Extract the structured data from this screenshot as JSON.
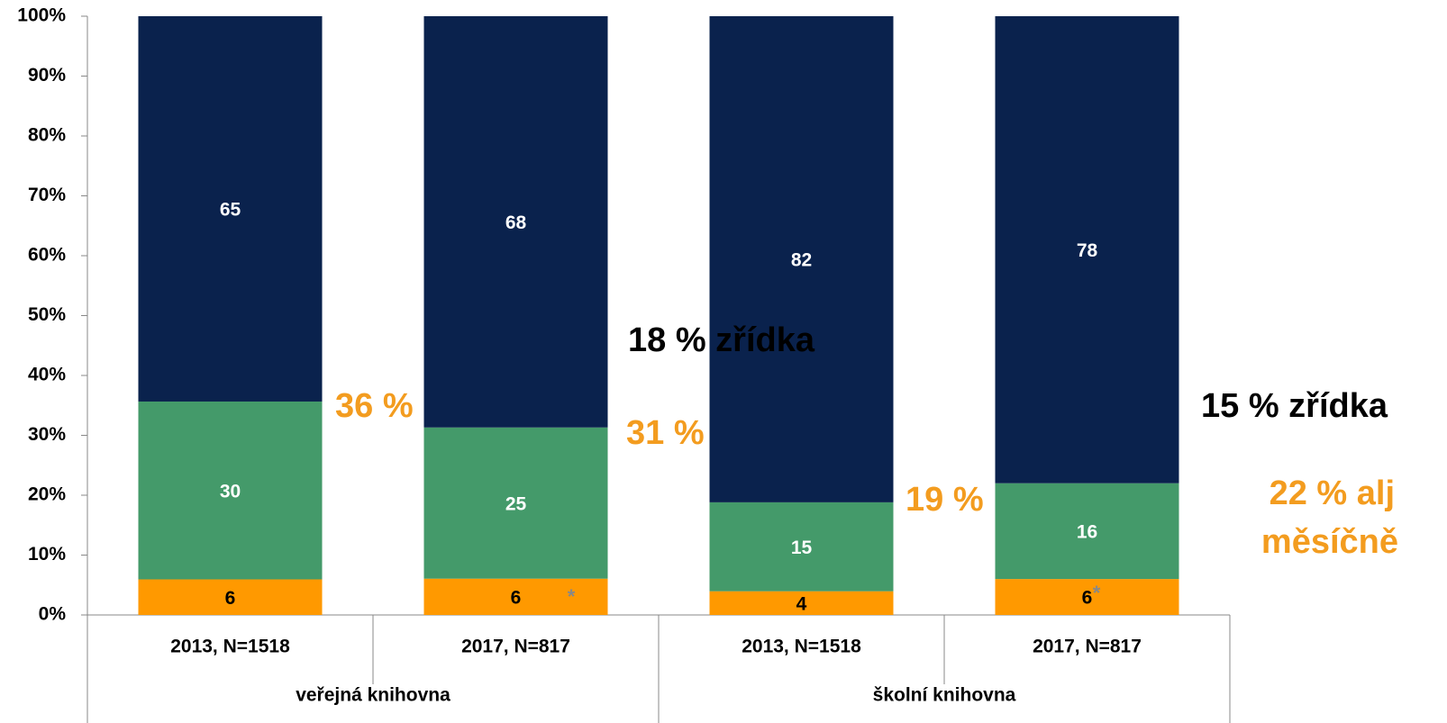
{
  "chart_data": {
    "type": "bar",
    "stacked": "percent",
    "categories": [
      "2013, N=1518",
      "2017, N=817",
      "2013, N=1518",
      "2017, N=817"
    ],
    "groups": [
      "veřejná knihovna",
      "školní knihovna"
    ],
    "series": [
      {
        "color": "#ff9900",
        "label_color": "#000000",
        "values": [
          6,
          6,
          4,
          6
        ]
      },
      {
        "color": "#449a6a",
        "label_color": "#ffffff",
        "values": [
          30,
          25,
          15,
          16
        ]
      },
      {
        "color": "#0a224d",
        "label_color": "#ffffff",
        "values": [
          65,
          68,
          82,
          78
        ]
      }
    ],
    "ylim": [
      0,
      100
    ],
    "yticks": [
      {
        "value": 0,
        "label": "0%"
      },
      {
        "value": 10,
        "label": "10%"
      },
      {
        "value": 20,
        "label": "20%"
      },
      {
        "value": 30,
        "label": "30%"
      },
      {
        "value": 40,
        "label": "40%"
      },
      {
        "value": 50,
        "label": "50%"
      },
      {
        "value": 60,
        "label": "60%"
      },
      {
        "value": 70,
        "label": "70%"
      },
      {
        "value": 80,
        "label": "80%"
      },
      {
        "value": 90,
        "label": "90%"
      },
      {
        "value": 100,
        "label": "100%"
      }
    ],
    "annotations": [
      {
        "text": "36 %",
        "color": "#f39c1f"
      },
      {
        "text": "31 %",
        "color": "#f39c1f"
      },
      {
        "text": "18 % zřídka",
        "color": "#000000"
      },
      {
        "text": "19 %",
        "color": "#f39c1f"
      },
      {
        "text": "15 % zřídka",
        "color": "#000000"
      },
      {
        "text": "22 % alj",
        "color": "#f39c1f"
      },
      {
        "text": "měsíčně",
        "color": "#f39c1f"
      },
      {
        "text": "*",
        "color": "#888888"
      },
      {
        "text": "*",
        "color": "#888888"
      }
    ]
  }
}
